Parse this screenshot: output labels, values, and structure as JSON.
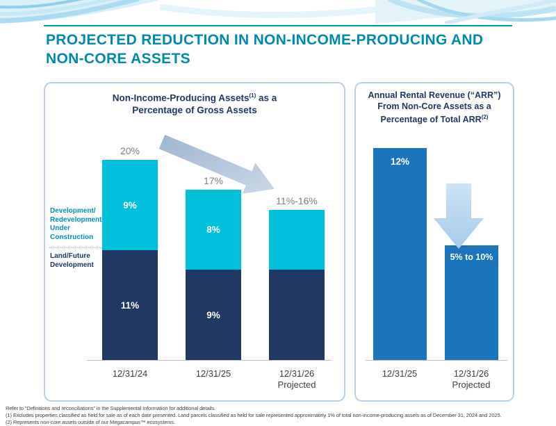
{
  "header": {
    "title_line1": "PROJECTED REDUCTION IN NON-INCOME-PRODUCING AND",
    "title_line2": "NON-CORE ASSETS"
  },
  "left_panel": {
    "title_part1": "Non-Income-Producing Assets",
    "title_sup": "(1)",
    "title_part2": " as a",
    "title_line2": "Percentage of Gross Assets",
    "legend": {
      "development": "Development/\nRedevelopment\nUnder\nConstruction",
      "land": "Land/Future\nDevelopment"
    }
  },
  "right_panel": {
    "title_line1": "Annual Rental Revenue (“ARR”)",
    "title_line2": "From Non-Core Assets as a",
    "title_line3": "Percentage of Total ARR",
    "title_sup": "(2)"
  },
  "chart_data": [
    {
      "type": "bar",
      "stacked": true,
      "title": "Non-Income-Producing Assets (1) as a Percentage of Gross Assets",
      "categories": [
        "12/31/24",
        "12/31/25",
        "12/31/26\nProjected"
      ],
      "series": [
        {
          "name": "Land/Future Development",
          "color": "#1F3864",
          "values": [
            11,
            9,
            null
          ],
          "segment_labels": [
            "11%",
            "9%",
            ""
          ]
        },
        {
          "name": "Development/Redevelopment Under Construction",
          "color": "#00C0DC",
          "values": [
            9,
            8,
            null
          ],
          "segment_labels": [
            "9%",
            "8%",
            ""
          ]
        }
      ],
      "totals": [
        20,
        17,
        null
      ],
      "total_labels": [
        "20%",
        "17%",
        "11%-16%"
      ],
      "projected_total_range": "11%-16%",
      "render_heights_pct": [
        [
          11,
          9
        ],
        [
          9,
          8
        ],
        [
          9,
          6
        ]
      ],
      "ylim": [
        0,
        22
      ],
      "grid": false,
      "legend_position": "left",
      "annotation": "gray downward trend arrow from 20% bar toward 11%-16% bar"
    },
    {
      "type": "bar",
      "title": "Annual Rental Revenue (“ARR”) From Non-Core Assets as a Percentage of Total ARR (2)",
      "categories": [
        "12/31/25",
        "12/31/26\nProjected"
      ],
      "values": [
        12,
        null
      ],
      "bar_labels": [
        "12%",
        "5% to 10%"
      ],
      "projected_range": "5% to 10%",
      "render_heights_pct": [
        12,
        6.5
      ],
      "bar_color": "#1B75BC",
      "ylim": [
        0,
        13
      ],
      "grid": false,
      "annotation": "large light-blue downward arrow pointing to projected bar"
    }
  ],
  "footnotes": {
    "ref": "Refer to “Definitions and reconciliations” in the Supplemental Information for additional details.",
    "note1": "(1) Excludes properties classified as held for sale as of each date presented. Land parcels classified as held for sale represented approximately 1% of total non-income-producing assets as of December 31, 2024 and 2025.",
    "note2": "(2) Represents non-core assets outside of our Megacampus™ ecosystems."
  },
  "colors": {
    "accent_teal": "#0089AE",
    "navy": "#1F3864",
    "cyan": "#00C0DC",
    "blue": "#1B75BC",
    "light_blue_arrow": "#BDD7EE",
    "gray_total_label": "#7F7F7F"
  }
}
